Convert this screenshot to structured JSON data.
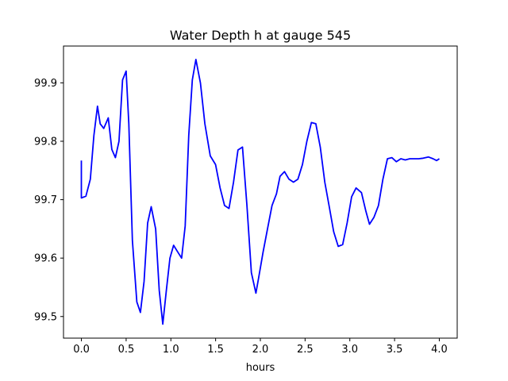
{
  "chart_data": {
    "type": "line",
    "title": "Water Depth h at gauge 545",
    "xlabel": "hours",
    "ylabel": "",
    "xlim": [
      -0.2,
      4.2
    ],
    "ylim": [
      99.463,
      99.963
    ],
    "xticks": [
      0.0,
      0.5,
      1.0,
      1.5,
      2.0,
      2.5,
      3.0,
      3.5,
      4.0
    ],
    "xtick_labels": [
      "0.0",
      "0.5",
      "1.0",
      "1.5",
      "2.0",
      "2.5",
      "3.0",
      "3.5",
      "4.0"
    ],
    "yticks": [
      99.5,
      99.6,
      99.7,
      99.8,
      99.9
    ],
    "ytick_labels": [
      "99.5",
      "99.6",
      "99.7",
      "99.8",
      "99.9"
    ],
    "grid": false,
    "legend": "none",
    "series": [
      {
        "color": "#0000ff",
        "x": [
          0.0,
          0.0,
          0.05,
          0.1,
          0.14,
          0.18,
          0.21,
          0.25,
          0.3,
          0.34,
          0.38,
          0.42,
          0.46,
          0.5,
          0.53,
          0.57,
          0.62,
          0.66,
          0.7,
          0.74,
          0.78,
          0.83,
          0.87,
          0.91,
          0.95,
          0.99,
          1.03,
          1.07,
          1.12,
          1.16,
          1.2,
          1.24,
          1.28,
          1.33,
          1.38,
          1.44,
          1.5,
          1.55,
          1.6,
          1.65,
          1.7,
          1.75,
          1.8,
          1.85,
          1.9,
          1.95,
          1.98,
          2.03,
          2.08,
          2.13,
          2.18,
          2.22,
          2.27,
          2.32,
          2.37,
          2.42,
          2.47,
          2.52,
          2.57,
          2.62,
          2.67,
          2.72,
          2.77,
          2.82,
          2.87,
          2.92,
          2.97,
          3.02,
          3.07,
          3.13,
          3.18,
          3.22,
          3.27,
          3.32,
          3.37,
          3.42,
          3.47,
          3.52,
          3.57,
          3.62,
          3.67,
          3.72,
          3.77,
          3.82,
          3.88,
          3.93,
          3.97,
          4.0
        ],
        "y": [
          99.767,
          99.703,
          99.706,
          99.735,
          99.81,
          99.86,
          99.83,
          99.822,
          99.84,
          99.786,
          99.772,
          99.8,
          99.905,
          99.92,
          99.83,
          99.63,
          99.525,
          99.507,
          99.56,
          99.66,
          99.688,
          99.65,
          99.545,
          99.487,
          99.545,
          99.6,
          99.622,
          99.612,
          99.6,
          99.655,
          99.81,
          99.905,
          99.94,
          99.9,
          99.83,
          99.775,
          99.76,
          99.72,
          99.69,
          99.685,
          99.73,
          99.785,
          99.79,
          99.69,
          99.575,
          99.54,
          99.565,
          99.61,
          99.65,
          99.69,
          99.71,
          99.74,
          99.748,
          99.735,
          99.73,
          99.735,
          99.76,
          99.8,
          99.832,
          99.83,
          99.79,
          99.73,
          99.688,
          99.645,
          99.62,
          99.623,
          99.66,
          99.705,
          99.72,
          99.712,
          99.68,
          99.658,
          99.67,
          99.69,
          99.735,
          99.77,
          99.772,
          99.765,
          99.77,
          99.768,
          99.77,
          99.77,
          99.77,
          99.771,
          99.773,
          99.77,
          99.767,
          99.77
        ]
      }
    ]
  }
}
